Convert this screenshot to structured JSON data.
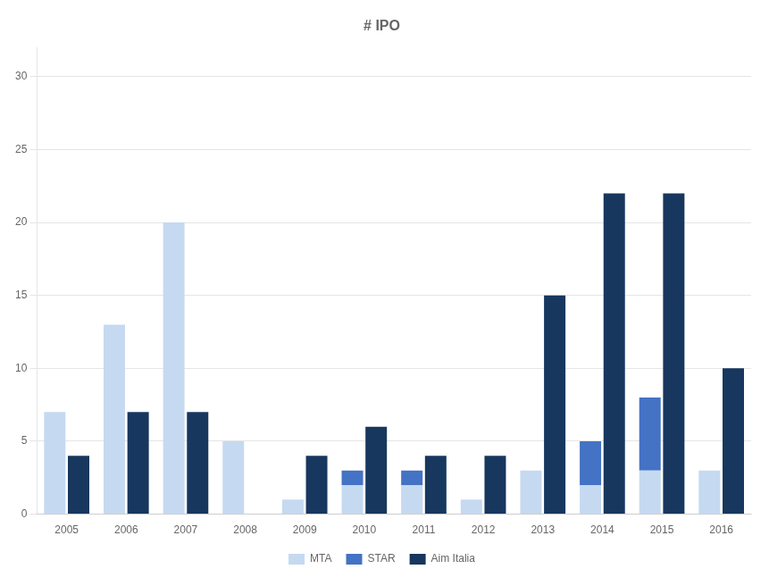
{
  "chart_data": {
    "type": "bar",
    "title": "# IPO",
    "categories": [
      "2005",
      "2006",
      "2007",
      "2008",
      "2009",
      "2010",
      "2011",
      "2012",
      "2013",
      "2014",
      "2015",
      "2016"
    ],
    "series": [
      {
        "name": "MTA",
        "color": "#c5d9f1",
        "values": [
          7,
          13,
          20,
          5,
          1,
          2,
          2,
          1,
          3,
          2,
          3,
          3
        ]
      },
      {
        "name": "STAR",
        "color": "#4472c4",
        "values": [
          0,
          0,
          0,
          0,
          0,
          1,
          1,
          0,
          0,
          3,
          5,
          0
        ]
      },
      {
        "name": "Aim Italia",
        "color": "#17375e",
        "values": [
          4,
          7,
          7,
          0,
          4,
          6,
          4,
          4,
          15,
          22,
          22,
          10
        ]
      }
    ],
    "stacked": [
      [
        "MTA",
        "STAR"
      ],
      [
        "Aim Italia"
      ]
    ],
    "ylim": [
      0,
      32
    ],
    "yticks": [
      0,
      5,
      10,
      15,
      20,
      25,
      30
    ],
    "grid": true,
    "legend": "bottom"
  }
}
